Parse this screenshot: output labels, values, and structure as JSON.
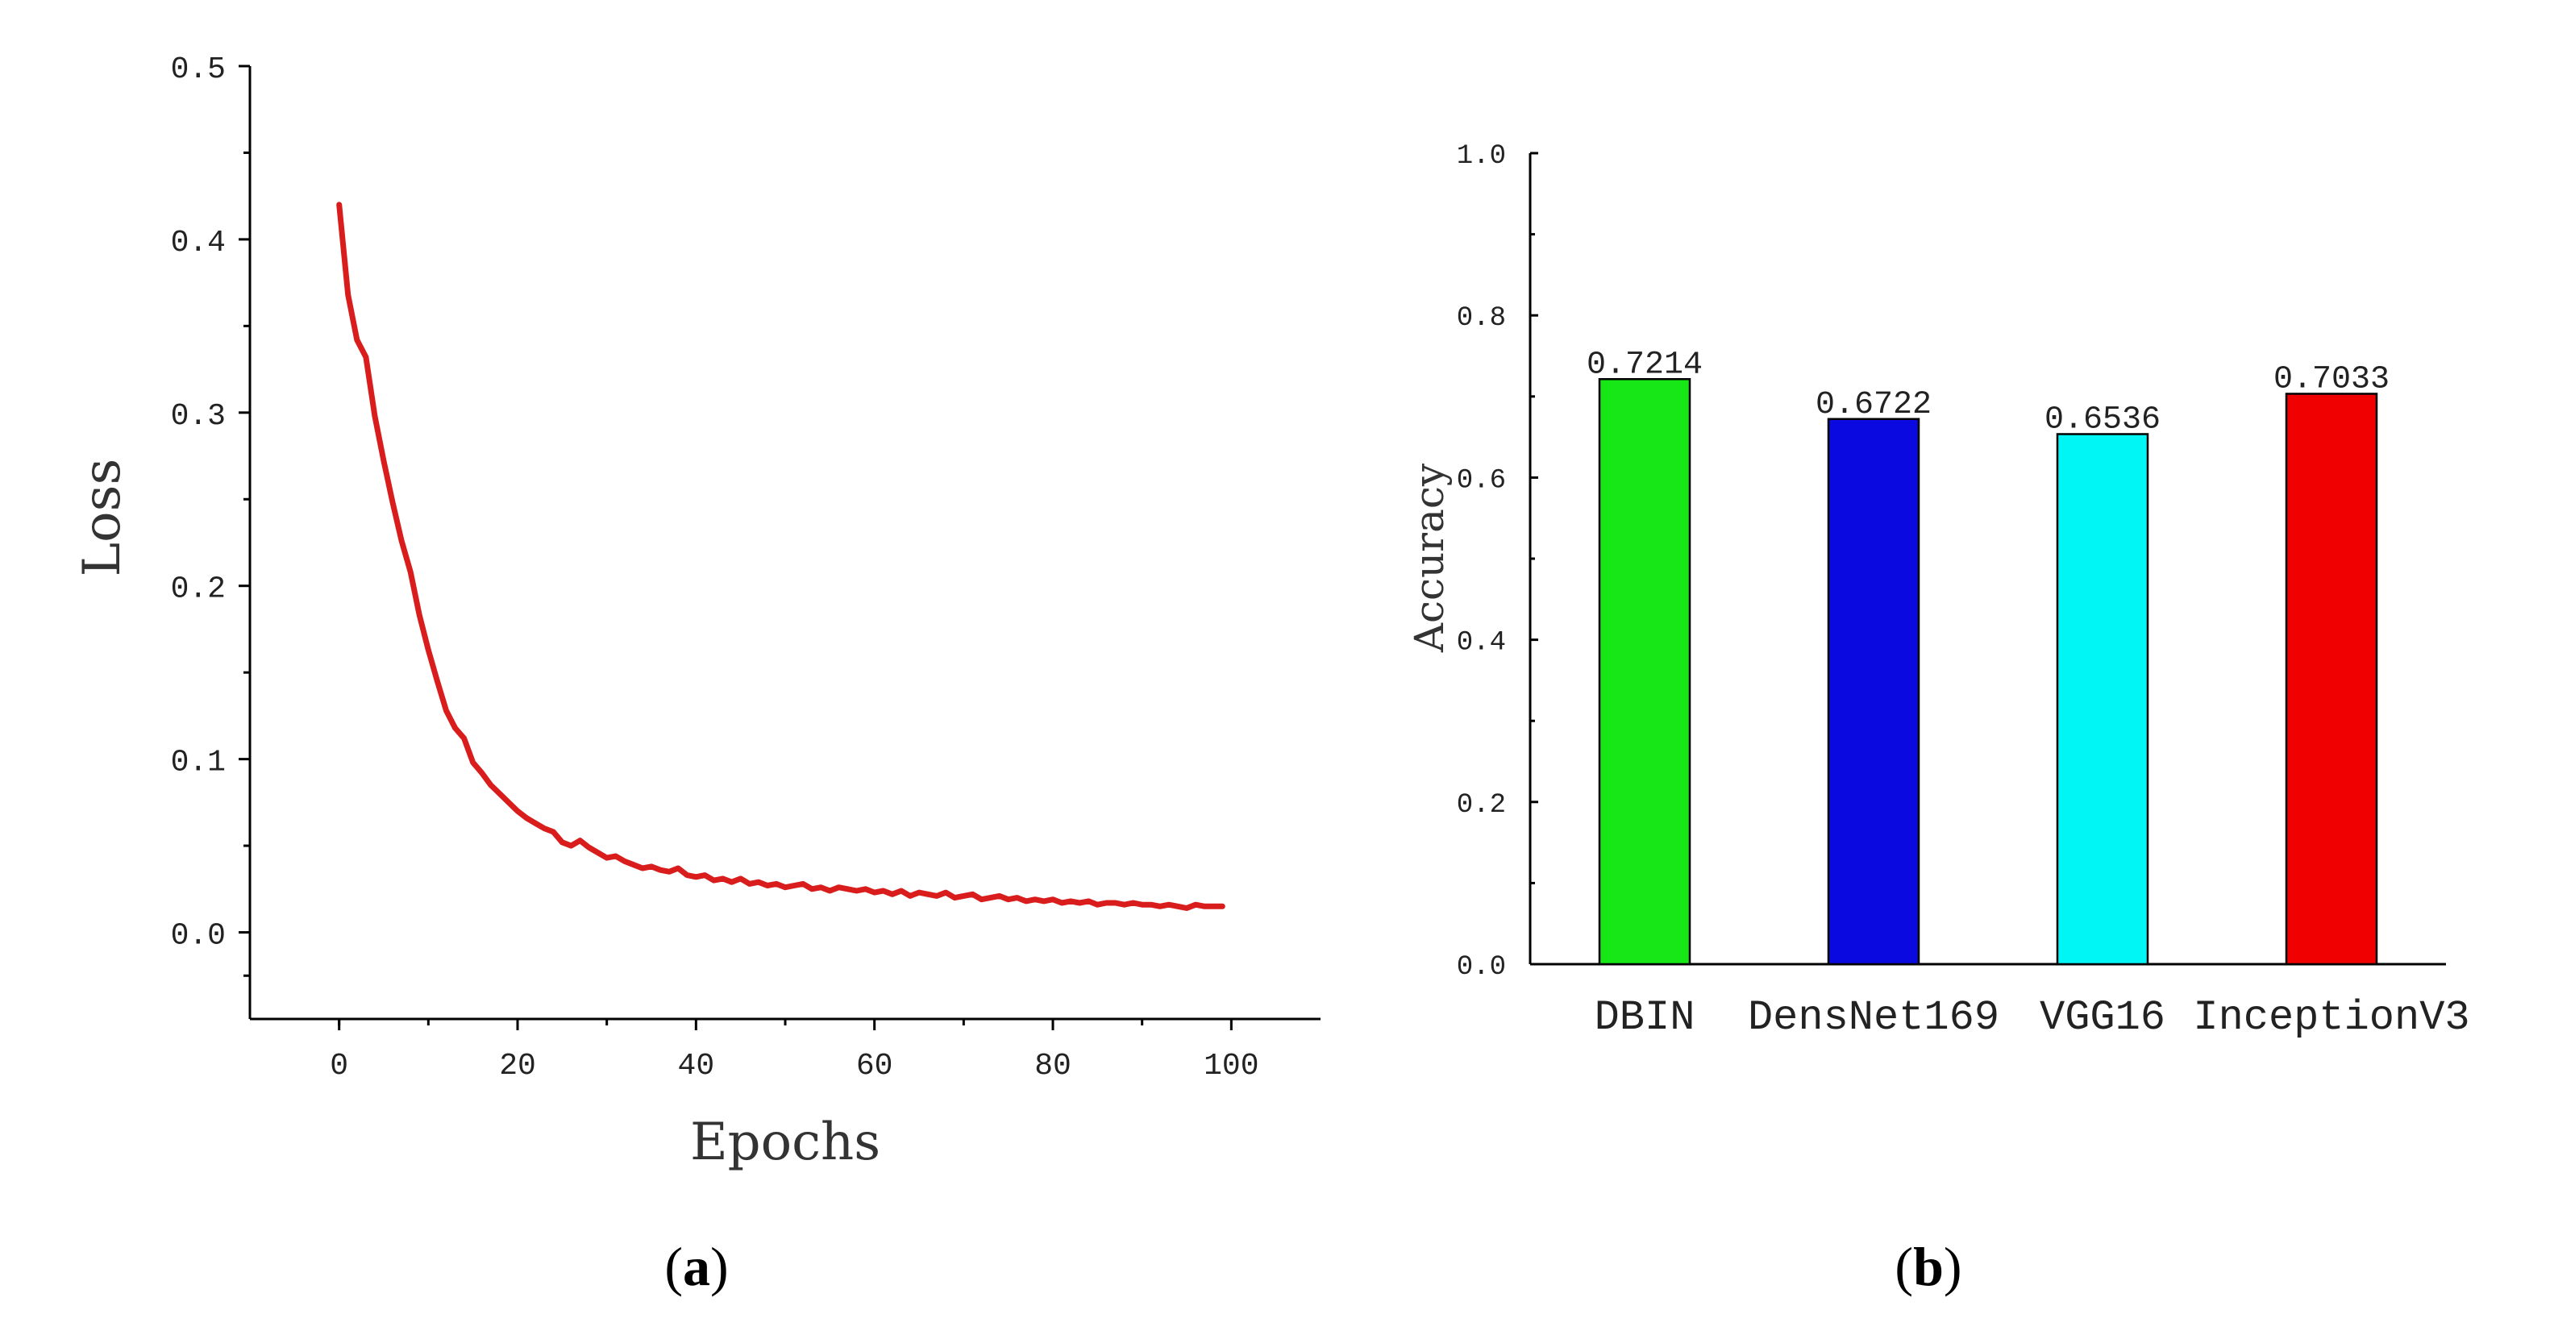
{
  "captions": {
    "a_open": "(",
    "a_letter": "a",
    "a_close": ")",
    "b_open": "(",
    "b_letter": "b",
    "b_close": ")"
  },
  "colors": {
    "loss_line": "#d91c1c",
    "axis": "#000000"
  },
  "chart_data": [
    {
      "panel": "a",
      "type": "line",
      "title": "",
      "xlabel": "Epochs",
      "ylabel": "Loss",
      "xlim": [
        -10,
        110
      ],
      "ylim": [
        -0.05,
        0.5
      ],
      "xticks": [
        0,
        20,
        40,
        60,
        80,
        100
      ],
      "xtick_labels": [
        "0",
        "20",
        "40",
        "60",
        "80",
        "100"
      ],
      "yticks": [
        0.0,
        0.1,
        0.2,
        0.3,
        0.4,
        0.5
      ],
      "ytick_labels": [
        "0.0",
        "0.1",
        "0.2",
        "0.3",
        "0.4",
        "0.5"
      ],
      "grid": false,
      "series": [
        {
          "name": "Loss",
          "color": "#d91c1c",
          "x": [
            0,
            1,
            2,
            3,
            4,
            5,
            6,
            7,
            8,
            9,
            10,
            11,
            12,
            13,
            14,
            15,
            16,
            17,
            18,
            19,
            20,
            21,
            22,
            23,
            24,
            25,
            26,
            27,
            28,
            29,
            30,
            31,
            32,
            33,
            34,
            35,
            36,
            37,
            38,
            39,
            40,
            41,
            42,
            43,
            44,
            45,
            46,
            47,
            48,
            49,
            50,
            51,
            52,
            53,
            54,
            55,
            56,
            57,
            58,
            59,
            60,
            61,
            62,
            63,
            64,
            65,
            66,
            67,
            68,
            69,
            70,
            71,
            72,
            73,
            74,
            75,
            76,
            77,
            78,
            79,
            80,
            81,
            82,
            83,
            84,
            85,
            86,
            87,
            88,
            89,
            90,
            91,
            92,
            93,
            94,
            95,
            96,
            97,
            98,
            99
          ],
          "y": [
            0.42,
            0.368,
            0.342,
            0.332,
            0.298,
            0.272,
            0.248,
            0.226,
            0.208,
            0.183,
            0.163,
            0.145,
            0.128,
            0.118,
            0.112,
            0.098,
            0.092,
            0.085,
            0.08,
            0.075,
            0.07,
            0.066,
            0.063,
            0.06,
            0.058,
            0.052,
            0.05,
            0.053,
            0.049,
            0.046,
            0.043,
            0.044,
            0.041,
            0.039,
            0.037,
            0.038,
            0.036,
            0.035,
            0.037,
            0.033,
            0.032,
            0.033,
            0.03,
            0.031,
            0.029,
            0.031,
            0.028,
            0.029,
            0.027,
            0.028,
            0.026,
            0.027,
            0.028,
            0.025,
            0.026,
            0.024,
            0.026,
            0.025,
            0.024,
            0.025,
            0.023,
            0.024,
            0.022,
            0.024,
            0.021,
            0.023,
            0.022,
            0.021,
            0.023,
            0.02,
            0.021,
            0.022,
            0.019,
            0.02,
            0.021,
            0.019,
            0.02,
            0.018,
            0.019,
            0.018,
            0.019,
            0.017,
            0.018,
            0.017,
            0.018,
            0.016,
            0.017,
            0.017,
            0.016,
            0.017,
            0.016,
            0.016,
            0.015,
            0.016,
            0.015,
            0.014,
            0.016,
            0.015,
            0.015,
            0.015
          ]
        }
      ]
    },
    {
      "panel": "b",
      "type": "bar",
      "title": "",
      "xlabel": "",
      "ylabel": "Accuracy",
      "ylim": [
        0.0,
        1.0
      ],
      "yticks": [
        0.0,
        0.2,
        0.4,
        0.6,
        0.8,
        1.0
      ],
      "ytick_labels": [
        "0.0",
        "0.2",
        "0.4",
        "0.6",
        "0.8",
        "1.0"
      ],
      "grid": false,
      "categories": [
        "DBIN",
        "DensNet169",
        "VGG16",
        "InceptionV3"
      ],
      "values": [
        0.7214,
        0.6722,
        0.6536,
        0.7033
      ],
      "value_labels": [
        "0.7214",
        "0.6722",
        "0.6536",
        "0.7033"
      ],
      "bar_colors": [
        "#17e617",
        "#0a0ae0",
        "#00f5f5",
        "#f00000"
      ]
    }
  ]
}
